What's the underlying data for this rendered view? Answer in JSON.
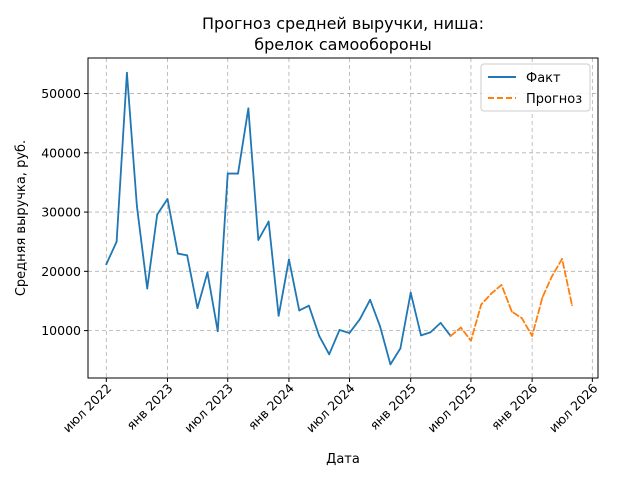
{
  "chart_data": {
    "type": "line",
    "title_lines": [
      "Прогноз средней выручки, ниша:",
      "брелок самообороны"
    ],
    "xlabel": "Дата",
    "ylabel": "Средняя выручка, руб.",
    "x_ticks": [
      {
        "date": "2022-07-01",
        "label": "июл 2022"
      },
      {
        "date": "2023-01-01",
        "label": "янв 2023"
      },
      {
        "date": "2023-07-01",
        "label": "июл 2023"
      },
      {
        "date": "2024-01-01",
        "label": "янв 2024"
      },
      {
        "date": "2024-07-01",
        "label": "июл 2024"
      },
      {
        "date": "2025-01-01",
        "label": "янв 2025"
      },
      {
        "date": "2025-07-01",
        "label": "июл 2025"
      },
      {
        "date": "2026-01-01",
        "label": "янв 2026"
      },
      {
        "date": "2026-07-01",
        "label": "июл 2026"
      }
    ],
    "y_ticks": [
      10000,
      20000,
      30000,
      40000,
      50000
    ],
    "xlim": [
      "2022-05-07",
      "2026-07-18"
    ],
    "ylim": [
      2000,
      56000
    ],
    "grid": true,
    "legend_position": "top-right",
    "series": [
      {
        "name": "Факт",
        "color": "#1f77b4",
        "style": "solid",
        "points": [
          [
            "2022-07-01",
            21200
          ],
          [
            "2022-08-01",
            25000
          ],
          [
            "2022-09-01",
            53500
          ],
          [
            "2022-10-01",
            31000
          ],
          [
            "2022-11-01",
            17100
          ],
          [
            "2022-12-01",
            29600
          ],
          [
            "2023-01-01",
            32200
          ],
          [
            "2023-02-01",
            23000
          ],
          [
            "2023-03-01",
            22700
          ],
          [
            "2023-04-01",
            13800
          ],
          [
            "2023-05-01",
            19800
          ],
          [
            "2023-06-01",
            9900
          ],
          [
            "2023-07-01",
            36500
          ],
          [
            "2023-08-01",
            36500
          ],
          [
            "2023-09-01",
            47500
          ],
          [
            "2023-10-01",
            25300
          ],
          [
            "2023-11-01",
            28400
          ],
          [
            "2023-12-01",
            12500
          ],
          [
            "2024-01-01",
            22000
          ],
          [
            "2024-02-01",
            13400
          ],
          [
            "2024-03-01",
            14200
          ],
          [
            "2024-04-01",
            9100
          ],
          [
            "2024-05-01",
            6000
          ],
          [
            "2024-06-01",
            10100
          ],
          [
            "2024-07-01",
            9600
          ],
          [
            "2024-08-01",
            11900
          ],
          [
            "2024-09-01",
            15200
          ],
          [
            "2024-10-01",
            10700
          ],
          [
            "2024-11-01",
            4300
          ],
          [
            "2024-12-01",
            7000
          ],
          [
            "2025-01-01",
            16400
          ],
          [
            "2025-02-01",
            9200
          ],
          [
            "2025-03-01",
            9700
          ],
          [
            "2025-04-01",
            11300
          ],
          [
            "2025-05-01",
            9100
          ]
        ]
      },
      {
        "name": "Прогноз",
        "color": "#ff7f0e",
        "style": "dashed",
        "points": [
          [
            "2025-05-01",
            9100
          ],
          [
            "2025-06-01",
            10500
          ],
          [
            "2025-07-01",
            8300
          ],
          [
            "2025-08-01",
            14400
          ],
          [
            "2025-09-01",
            16300
          ],
          [
            "2025-10-01",
            17700
          ],
          [
            "2025-11-01",
            13200
          ],
          [
            "2025-12-01",
            12100
          ],
          [
            "2026-01-01",
            9100
          ],
          [
            "2026-02-01",
            15600
          ],
          [
            "2026-03-01",
            19100
          ],
          [
            "2026-04-01",
            22100
          ],
          [
            "2026-05-01",
            14300
          ]
        ]
      }
    ]
  }
}
